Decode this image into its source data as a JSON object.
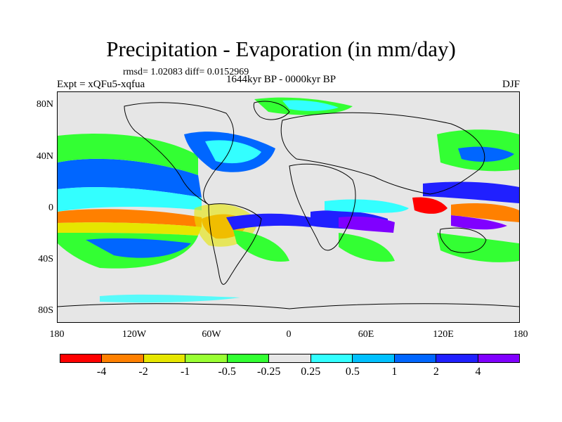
{
  "title": "Precipitation - Evaporation (in mm/day)",
  "stats": "rmsd= 1.02083 diff= 0.0152969",
  "period": "1644kyr BP - 0000kyr BP",
  "experiment": "Expt = xQFu5-xqfua",
  "season": "DJF",
  "map": {
    "background_color": "#e6e6e6",
    "lat_labels": [
      "80N",
      "40N",
      "0",
      "40S",
      "80S"
    ],
    "lon_labels": [
      "180",
      "120W",
      "60W",
      "0",
      "60E",
      "120E",
      "180"
    ]
  },
  "colorbar": {
    "colors": [
      "#ff0000",
      "#ff8000",
      "#e6e600",
      "#99ff33",
      "#33ff33",
      "#e6e6e6",
      "#33ffff",
      "#00c0ff",
      "#0066ff",
      "#2020ff",
      "#8000ff"
    ],
    "labels": [
      "-4",
      "-2",
      "-1",
      "-0.5",
      "-0.25",
      "0.25",
      "0.5",
      "1",
      "2",
      "4"
    ]
  }
}
